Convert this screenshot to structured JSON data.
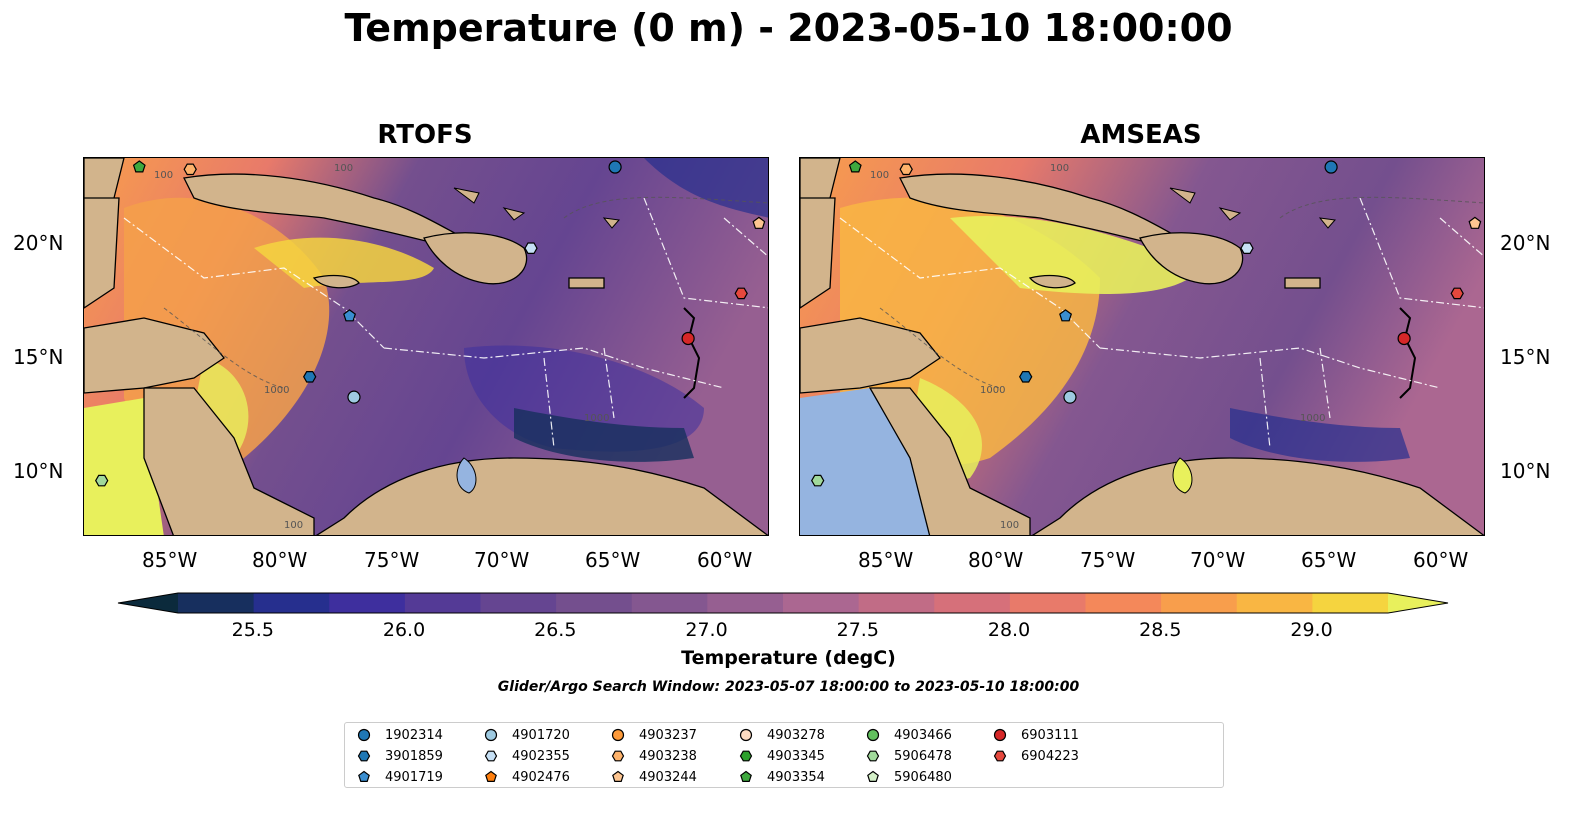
{
  "title": "Temperature (0 m) - 2023-05-10 18:00:00",
  "panels": [
    {
      "title": "RTOFS"
    },
    {
      "title": "AMSEAS"
    }
  ],
  "map": {
    "lon_ticks": [
      "85°W",
      "80°W",
      "75°W",
      "70°W",
      "65°W",
      "60°W"
    ],
    "lat_ticks": [
      "20°N",
      "15°N",
      "10°N"
    ],
    "lon_range": [
      -89,
      -58
    ],
    "lat_range": [
      7,
      23.8
    ],
    "land_color": "#d2b48c",
    "outside_model_color": "#95b4e0",
    "contour_labels": [
      "100",
      "1000",
      "100",
      "1000",
      "100"
    ]
  },
  "colorbar": {
    "title": "Temperature (degC)",
    "tick_labels": [
      "25.5",
      "26.0",
      "26.5",
      "27.0",
      "27.5",
      "28.0",
      "28.5",
      "29.0"
    ],
    "colormap": "thermal",
    "extend": "both",
    "vmin": 25.25,
    "vmax": 29.25,
    "step": 0.25,
    "colors": [
      "#0b2a3c",
      "#172f5e",
      "#262f8e",
      "#3e2f9e",
      "#543a96",
      "#654591",
      "#744f8e",
      "#845790",
      "#965f91",
      "#ab6791",
      "#c16c86",
      "#d6707a",
      "#e87a6a",
      "#f4885a",
      "#f89e4c",
      "#f9b643",
      "#f5d43f",
      "#e8f05c"
    ]
  },
  "search_window": "Glider/Argo Search Window: 2023-05-07 18:00:00 to 2023-05-10 18:00:00",
  "legend": [
    {
      "label": "1902314",
      "marker": "circle",
      "color": "#1f77b4"
    },
    {
      "label": "3901859",
      "marker": "hexagon",
      "color": "#1f77b4"
    },
    {
      "label": "4901719",
      "marker": "pentagon",
      "color": "#3a8ed0"
    },
    {
      "label": "4901720",
      "marker": "circle",
      "color": "#9ecae1"
    },
    {
      "label": "4902355",
      "marker": "hexagon",
      "color": "#c6e0f5"
    },
    {
      "label": "4902476",
      "marker": "pentagon",
      "color": "#ff7f0e"
    },
    {
      "label": "4903237",
      "marker": "circle",
      "color": "#fd9a3a"
    },
    {
      "label": "4903238",
      "marker": "hexagon",
      "color": "#fdb26b"
    },
    {
      "label": "4903244",
      "marker": "pentagon",
      "color": "#fdc591"
    },
    {
      "label": "4903278",
      "marker": "circle",
      "color": "#fddbc2"
    },
    {
      "label": "4903345",
      "marker": "hexagon",
      "color": "#2ca02c"
    },
    {
      "label": "4903354",
      "marker": "pentagon",
      "color": "#3ea83e"
    },
    {
      "label": "4903466",
      "marker": "circle",
      "color": "#62c05e"
    },
    {
      "label": "5906478",
      "marker": "hexagon",
      "color": "#a1d99b"
    },
    {
      "label": "5906480",
      "marker": "pentagon",
      "color": "#d4f0c8"
    },
    {
      "label": "6903111",
      "marker": "circle",
      "color": "#d62728"
    },
    {
      "label": "6904223",
      "marker": "hexagon",
      "color": "#e5483d"
    }
  ],
  "floats": [
    {
      "id": "1902314",
      "lon": -65.0,
      "lat": 23.4
    },
    {
      "id": "3901859",
      "lon": -78.8,
      "lat": 14.1
    },
    {
      "id": "4901719",
      "lon": -77.0,
      "lat": 16.8
    },
    {
      "id": "4901720",
      "lon": -76.8,
      "lat": 13.2
    },
    {
      "id": "4902355",
      "lon": -68.8,
      "lat": 19.8
    },
    {
      "id": "4903244",
      "lon": -58.5,
      "lat": 20.9
    },
    {
      "id": "4903238",
      "lon": -84.2,
      "lat": 23.3
    },
    {
      "id": "4903354",
      "lon": -86.5,
      "lat": 23.4
    },
    {
      "id": "5906478",
      "lon": -88.2,
      "lat": 9.5
    },
    {
      "id": "6903111",
      "lon": -61.7,
      "lat": 15.8
    },
    {
      "id": "6904223",
      "lon": -59.3,
      "lat": 17.8
    }
  ]
}
